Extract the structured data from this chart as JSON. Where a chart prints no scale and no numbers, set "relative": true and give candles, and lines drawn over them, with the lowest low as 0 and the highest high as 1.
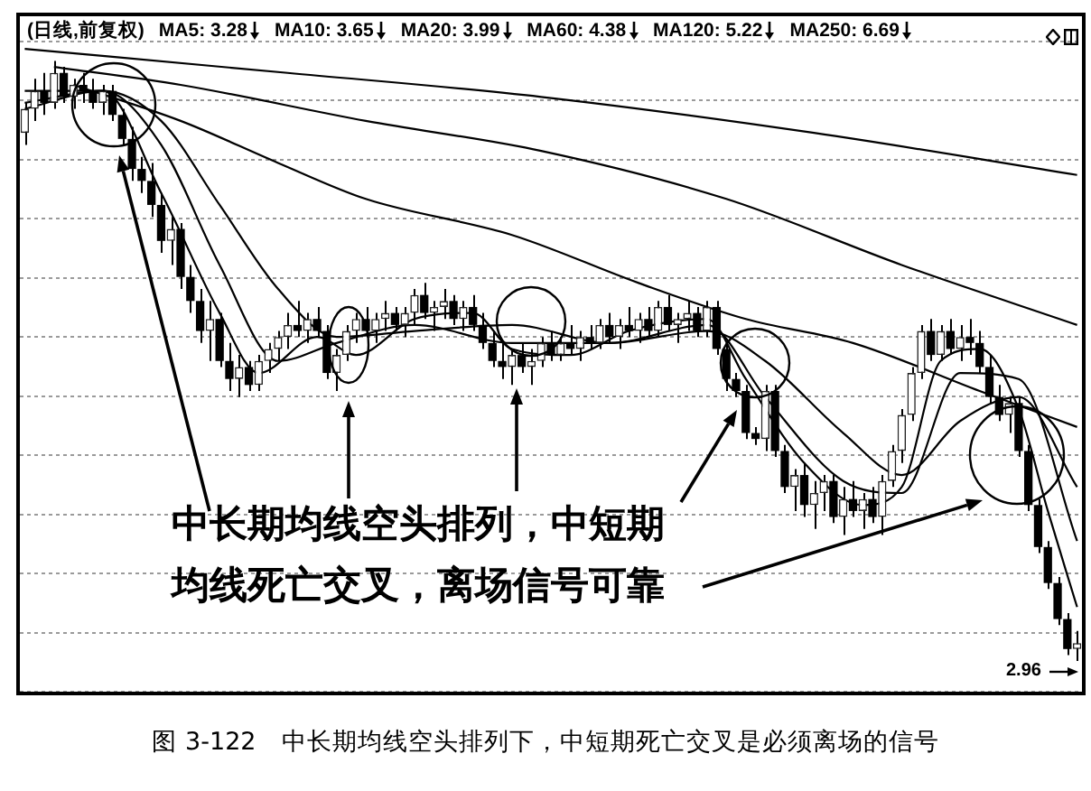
{
  "chart_data": {
    "type": "candlestick",
    "title": "(日线,前复权)",
    "relative": true,
    "grid": "y",
    "legend": "top left",
    "marker": "none",
    "categories": [
      null,
      null,
      null,
      null,
      null,
      null,
      null,
      null,
      null,
      null,
      null,
      null,
      null,
      null,
      null,
      null,
      null,
      null,
      null,
      null,
      null,
      null,
      null,
      null,
      null,
      null,
      null,
      null,
      null,
      null,
      null,
      null,
      null,
      null,
      null,
      null,
      null,
      null,
      null,
      null,
      null,
      null,
      null,
      null,
      null,
      null,
      null,
      null,
      null,
      null,
      null,
      null,
      null,
      null,
      null,
      null,
      null,
      null,
      null,
      null,
      null,
      null,
      null,
      null,
      null,
      null,
      null,
      null,
      null,
      null,
      null,
      null,
      null,
      null,
      null,
      null,
      null,
      null,
      null,
      null,
      null,
      null,
      null,
      null,
      null,
      null,
      null,
      null,
      null,
      null,
      null,
      null,
      null,
      null,
      null,
      null,
      null,
      null,
      null,
      null,
      null,
      null,
      null,
      null,
      null,
      null,
      null,
      null,
      null
    ],
    "ohlc": [
      [
        0.88,
        0.93,
        0.86,
        0.92
      ],
      [
        0.92,
        0.97,
        0.9,
        0.95
      ],
      [
        0.95,
        0.98,
        0.91,
        0.93
      ],
      [
        0.93,
        1.0,
        0.92,
        0.98
      ],
      [
        0.98,
        0.99,
        0.93,
        0.94
      ],
      [
        0.94,
        0.97,
        0.92,
        0.96
      ],
      [
        0.96,
        0.98,
        0.93,
        0.95
      ],
      [
        0.95,
        0.97,
        0.92,
        0.93
      ],
      [
        0.93,
        0.96,
        0.91,
        0.95
      ],
      [
        0.95,
        0.96,
        0.9,
        0.91
      ],
      [
        0.91,
        0.92,
        0.86,
        0.87
      ],
      [
        0.87,
        0.89,
        0.8,
        0.82
      ],
      [
        0.82,
        0.84,
        0.78,
        0.8
      ],
      [
        0.8,
        0.83,
        0.74,
        0.76
      ],
      [
        0.76,
        0.78,
        0.68,
        0.7
      ],
      [
        0.7,
        0.74,
        0.66,
        0.72
      ],
      [
        0.72,
        0.73,
        0.62,
        0.64
      ],
      [
        0.64,
        0.66,
        0.58,
        0.6
      ],
      [
        0.6,
        0.62,
        0.53,
        0.55
      ],
      [
        0.55,
        0.6,
        0.5,
        0.57
      ],
      [
        0.57,
        0.58,
        0.49,
        0.5
      ],
      [
        0.5,
        0.53,
        0.45,
        0.47
      ],
      [
        0.47,
        0.51,
        0.44,
        0.49
      ],
      [
        0.49,
        0.5,
        0.45,
        0.46
      ],
      [
        0.46,
        0.51,
        0.45,
        0.5
      ],
      [
        0.5,
        0.53,
        0.48,
        0.52
      ],
      [
        0.52,
        0.55,
        0.5,
        0.54
      ],
      [
        0.54,
        0.58,
        0.52,
        0.56
      ],
      [
        0.56,
        0.6,
        0.54,
        0.55
      ],
      [
        0.55,
        0.58,
        0.53,
        0.57
      ],
      [
        0.57,
        0.59,
        0.54,
        0.55
      ],
      [
        0.55,
        0.56,
        0.47,
        0.48
      ],
      [
        0.48,
        0.52,
        0.45,
        0.51
      ],
      [
        0.51,
        0.56,
        0.5,
        0.55
      ],
      [
        0.55,
        0.58,
        0.53,
        0.57
      ],
      [
        0.57,
        0.59,
        0.54,
        0.55
      ],
      [
        0.55,
        0.58,
        0.53,
        0.57
      ],
      [
        0.57,
        0.6,
        0.55,
        0.58
      ],
      [
        0.58,
        0.59,
        0.55,
        0.56
      ],
      [
        0.56,
        0.59,
        0.54,
        0.58
      ],
      [
        0.58,
        0.62,
        0.56,
        0.61
      ],
      [
        0.61,
        0.63,
        0.57,
        0.58
      ],
      [
        0.58,
        0.6,
        0.55,
        0.59
      ],
      [
        0.59,
        0.62,
        0.57,
        0.6
      ],
      [
        0.6,
        0.61,
        0.56,
        0.57
      ],
      [
        0.57,
        0.6,
        0.55,
        0.59
      ],
      [
        0.59,
        0.61,
        0.55,
        0.56
      ],
      [
        0.56,
        0.58,
        0.52,
        0.53
      ],
      [
        0.53,
        0.55,
        0.49,
        0.5
      ],
      [
        0.5,
        0.53,
        0.47,
        0.49
      ],
      [
        0.49,
        0.52,
        0.46,
        0.51
      ],
      [
        0.51,
        0.53,
        0.48,
        0.49
      ],
      [
        0.49,
        0.52,
        0.46,
        0.5
      ],
      [
        0.5,
        0.54,
        0.49,
        0.53
      ],
      [
        0.53,
        0.55,
        0.5,
        0.51
      ],
      [
        0.51,
        0.54,
        0.5,
        0.53
      ],
      [
        0.53,
        0.56,
        0.51,
        0.52
      ],
      [
        0.52,
        0.55,
        0.5,
        0.54
      ],
      [
        0.54,
        0.56,
        0.52,
        0.53
      ],
      [
        0.53,
        0.57,
        0.52,
        0.56
      ],
      [
        0.56,
        0.58,
        0.53,
        0.54
      ],
      [
        0.54,
        0.57,
        0.52,
        0.56
      ],
      [
        0.56,
        0.59,
        0.54,
        0.55
      ],
      [
        0.55,
        0.58,
        0.53,
        0.57
      ],
      [
        0.57,
        0.59,
        0.54,
        0.55
      ],
      [
        0.55,
        0.6,
        0.54,
        0.59
      ],
      [
        0.59,
        0.61,
        0.55,
        0.56
      ],
      [
        0.56,
        0.58,
        0.53,
        0.57
      ],
      [
        0.57,
        0.6,
        0.55,
        0.58
      ],
      [
        0.58,
        0.59,
        0.54,
        0.55
      ],
      [
        0.55,
        0.6,
        0.54,
        0.59
      ],
      [
        0.59,
        0.6,
        0.51,
        0.52
      ],
      [
        0.52,
        0.53,
        0.45,
        0.47
      ],
      [
        0.47,
        0.48,
        0.44,
        0.45
      ],
      [
        0.45,
        0.46,
        0.37,
        0.38
      ],
      [
        0.38,
        0.39,
        0.36,
        0.37
      ],
      [
        0.37,
        0.46,
        0.35,
        0.45
      ],
      [
        0.45,
        0.46,
        0.34,
        0.35
      ],
      [
        0.35,
        0.36,
        0.28,
        0.29
      ],
      [
        0.29,
        0.32,
        0.25,
        0.31
      ],
      [
        0.31,
        0.33,
        0.24,
        0.26
      ],
      [
        0.26,
        0.3,
        0.22,
        0.28
      ],
      [
        0.28,
        0.31,
        0.25,
        0.3
      ],
      [
        0.3,
        0.31,
        0.23,
        0.24
      ],
      [
        0.24,
        0.29,
        0.21,
        0.27
      ],
      [
        0.27,
        0.3,
        0.24,
        0.25
      ],
      [
        0.25,
        0.28,
        0.22,
        0.27
      ],
      [
        0.27,
        0.29,
        0.23,
        0.24
      ],
      [
        0.24,
        0.31,
        0.21,
        0.3
      ],
      [
        0.3,
        0.36,
        0.29,
        0.35
      ],
      [
        0.35,
        0.42,
        0.33,
        0.41
      ],
      [
        0.41,
        0.49,
        0.4,
        0.48
      ],
      [
        0.48,
        0.56,
        0.47,
        0.55
      ],
      [
        0.55,
        0.57,
        0.5,
        0.51
      ],
      [
        0.51,
        0.56,
        0.5,
        0.55
      ],
      [
        0.55,
        0.57,
        0.51,
        0.52
      ],
      [
        0.52,
        0.56,
        0.5,
        0.54
      ],
      [
        0.54,
        0.57,
        0.51,
        0.53
      ],
      [
        0.53,
        0.55,
        0.48,
        0.49
      ],
      [
        0.49,
        0.51,
        0.43,
        0.44
      ],
      [
        0.44,
        0.46,
        0.4,
        0.41
      ],
      [
        0.41,
        0.44,
        0.38,
        0.43
      ],
      [
        0.43,
        0.44,
        0.34,
        0.35
      ],
      [
        0.35,
        0.36,
        0.25,
        0.26
      ],
      [
        0.26,
        0.27,
        0.18,
        0.19
      ],
      [
        0.19,
        0.2,
        0.12,
        0.13
      ],
      [
        0.13,
        0.14,
        0.06,
        0.07
      ],
      [
        0.07,
        0.08,
        0.01,
        0.02
      ],
      [
        0.02,
        0.05,
        0,
        0.03
      ]
    ],
    "series": [
      {
        "name": "MA5: 3.28",
        "type": "line",
        "color": "#000000",
        "values": [
          0.92,
          null,
          null,
          null,
          null,
          null,
          null,
          null,
          0.95,
          null,
          null,
          null,
          null,
          null,
          0.78,
          null,
          null,
          null,
          null,
          null,
          0.58,
          null,
          null,
          null,
          0.48,
          null,
          null,
          null,
          null,
          null,
          0.54,
          null,
          null,
          null,
          0.51,
          null,
          null,
          null,
          null,
          null,
          0.57,
          null,
          null,
          null,
          null,
          null,
          0.58,
          null,
          null,
          null,
          0.52,
          null,
          null,
          null,
          null,
          null,
          0.51,
          null,
          null,
          null,
          null,
          null,
          0.55,
          null,
          null,
          null,
          null,
          null,
          null,
          null,
          0.57,
          null,
          null,
          null,
          0.47,
          null,
          null,
          null,
          null,
          null,
          0.33,
          null,
          null,
          null,
          null,
          null,
          0.26,
          null,
          null,
          null,
          0.29,
          null,
          null,
          null,
          0.5,
          null,
          null,
          null,
          0.52,
          null,
          null,
          null,
          0.42,
          null,
          null,
          0.25,
          null,
          null,
          0.09
        ]
      },
      {
        "name": "MA10: 3.65",
        "type": "line",
        "color": "#000000",
        "values": [
          0.93,
          null,
          null,
          null,
          null,
          null,
          null,
          null,
          0.95,
          null,
          null,
          null,
          null,
          null,
          0.86,
          null,
          null,
          null,
          null,
          null,
          0.66,
          null,
          null,
          null,
          null,
          null,
          0.5,
          null,
          null,
          null,
          null,
          null,
          0.53,
          null,
          null,
          null,
          null,
          null,
          null,
          null,
          0.56,
          null,
          null,
          null,
          null,
          null,
          null,
          null,
          null,
          null,
          0.53,
          null,
          null,
          null,
          null,
          null,
          null,
          null,
          null,
          null,
          0.53,
          null,
          null,
          null,
          null,
          null,
          null,
          null,
          null,
          null,
          0.56,
          null,
          null,
          null,
          null,
          null,
          0.44,
          null,
          null,
          null,
          null,
          null,
          null,
          null,
          0.3,
          null,
          null,
          null,
          null,
          null,
          0.28,
          null,
          null,
          null,
          null,
          null,
          0.48,
          null,
          null,
          null,
          null,
          null,
          0.47,
          null,
          null,
          null,
          null,
          null,
          0.2
        ]
      },
      {
        "name": "MA20: 3.99",
        "type": "line",
        "color": "#000000",
        "values": [
          0.95,
          null,
          null,
          null,
          null,
          null,
          null,
          null,
          0.95,
          null,
          null,
          null,
          null,
          null,
          0.9,
          null,
          null,
          null,
          null,
          null,
          0.76,
          null,
          null,
          null,
          null,
          null,
          0.62,
          null,
          null,
          null,
          null,
          null,
          0.54,
          null,
          null,
          null,
          null,
          null,
          null,
          null,
          0.55,
          null,
          null,
          null,
          null,
          null,
          null,
          null,
          null,
          null,
          0.56,
          null,
          null,
          null,
          null,
          null,
          null,
          null,
          null,
          null,
          0.53,
          null,
          null,
          null,
          null,
          null,
          null,
          null,
          null,
          null,
          0.55,
          null,
          null,
          null,
          null,
          null,
          0.5,
          null,
          null,
          null,
          null,
          null,
          null,
          null,
          0.38,
          null,
          null,
          null,
          null,
          null,
          0.31,
          null,
          null,
          null,
          null,
          null,
          0.4,
          null,
          null,
          null,
          null,
          null,
          0.44,
          null,
          null,
          null,
          null,
          null,
          0.29
        ]
      },
      {
        "name": "MA60: 4.38",
        "type": "line",
        "color": "#000000",
        "values": [
          null,
          null,
          null,
          null,
          null,
          0.96,
          null,
          null,
          null,
          null,
          null,
          null,
          null,
          null,
          null,
          null,
          0.9,
          null,
          null,
          null,
          null,
          null,
          null,
          null,
          null,
          null,
          0.83,
          null,
          null,
          null,
          null,
          null,
          null,
          null,
          null,
          0.77,
          null,
          null,
          null,
          null,
          null,
          null,
          null,
          null,
          null,
          null,
          null,
          null,
          null,
          null,
          0.71,
          null,
          null,
          null,
          null,
          null,
          null,
          null,
          null,
          null,
          null,
          null,
          null,
          0.63,
          null,
          null,
          null,
          null,
          null,
          null,
          null,
          null,
          null,
          null,
          0.57,
          null,
          null,
          null,
          null,
          null,
          null,
          null,
          null,
          null,
          null,
          0.53,
          null,
          null,
          null,
          null,
          null,
          null,
          null,
          null,
          null,
          null,
          null,
          null,
          0.45,
          null,
          null,
          null,
          null,
          null,
          null,
          null,
          null,
          null,
          0.39
        ]
      },
      {
        "name": "MA120: 5.22",
        "type": "line",
        "color": "#000000",
        "values": [
          null,
          null,
          null,
          0.99,
          null,
          null,
          null,
          null,
          null,
          null,
          null,
          null,
          null,
          null,
          null,
          null,
          0.96,
          null,
          null,
          null,
          null,
          null,
          null,
          null,
          null,
          null,
          null,
          null,
          null,
          null,
          null,
          null,
          null,
          null,
          null,
          0.9,
          null,
          null,
          null,
          null,
          null,
          null,
          null,
          null,
          null,
          null,
          null,
          null,
          null,
          null,
          null,
          null,
          null,
          0.85,
          null,
          null,
          null,
          null,
          null,
          null,
          null,
          null,
          null,
          null,
          null,
          null,
          null,
          null,
          null,
          null,
          null,
          null,
          0.77,
          null,
          null,
          null,
          null,
          null,
          null,
          null,
          null,
          null,
          null,
          null,
          null,
          null,
          null,
          null,
          null,
          null,
          0.66,
          null,
          null,
          null,
          null,
          null,
          null,
          null,
          null,
          null,
          null,
          null,
          null,
          null,
          null,
          null,
          null,
          null,
          0.56
        ]
      },
      {
        "name": "MA250: 6.69",
        "type": "line",
        "color": "#000000",
        "values": [
          1.02,
          null,
          null,
          null,
          null,
          null,
          null,
          null,
          null,
          null,
          null,
          null,
          null,
          null,
          null,
          null,
          null,
          null,
          null,
          null,
          null,
          null,
          null,
          null,
          null,
          null,
          null,
          0.98,
          null,
          null,
          null,
          null,
          null,
          null,
          null,
          null,
          null,
          null,
          null,
          null,
          null,
          null,
          null,
          null,
          null,
          null,
          null,
          null,
          null,
          null,
          null,
          null,
          null,
          0.94,
          null,
          null,
          null,
          null,
          null,
          null,
          null,
          null,
          null,
          null,
          null,
          null,
          null,
          null,
          null,
          null,
          null,
          null,
          null,
          null,
          null,
          null,
          null,
          null,
          null,
          null,
          null,
          0.88,
          null,
          null,
          null,
          null,
          null,
          null,
          null,
          null,
          null,
          null,
          null,
          null,
          null,
          null,
          null,
          null,
          null,
          null,
          null,
          null,
          null,
          null,
          null,
          null,
          null,
          null,
          0.81
        ]
      }
    ],
    "annotations": [
      "中长期均线空头排列，中短期",
      "均线死亡交叉，离场信号可靠",
      "2.96",
      "图 3-122　中长期均线空头排列下，中短期死亡交叉是必须离场的信号"
    ]
  }
}
